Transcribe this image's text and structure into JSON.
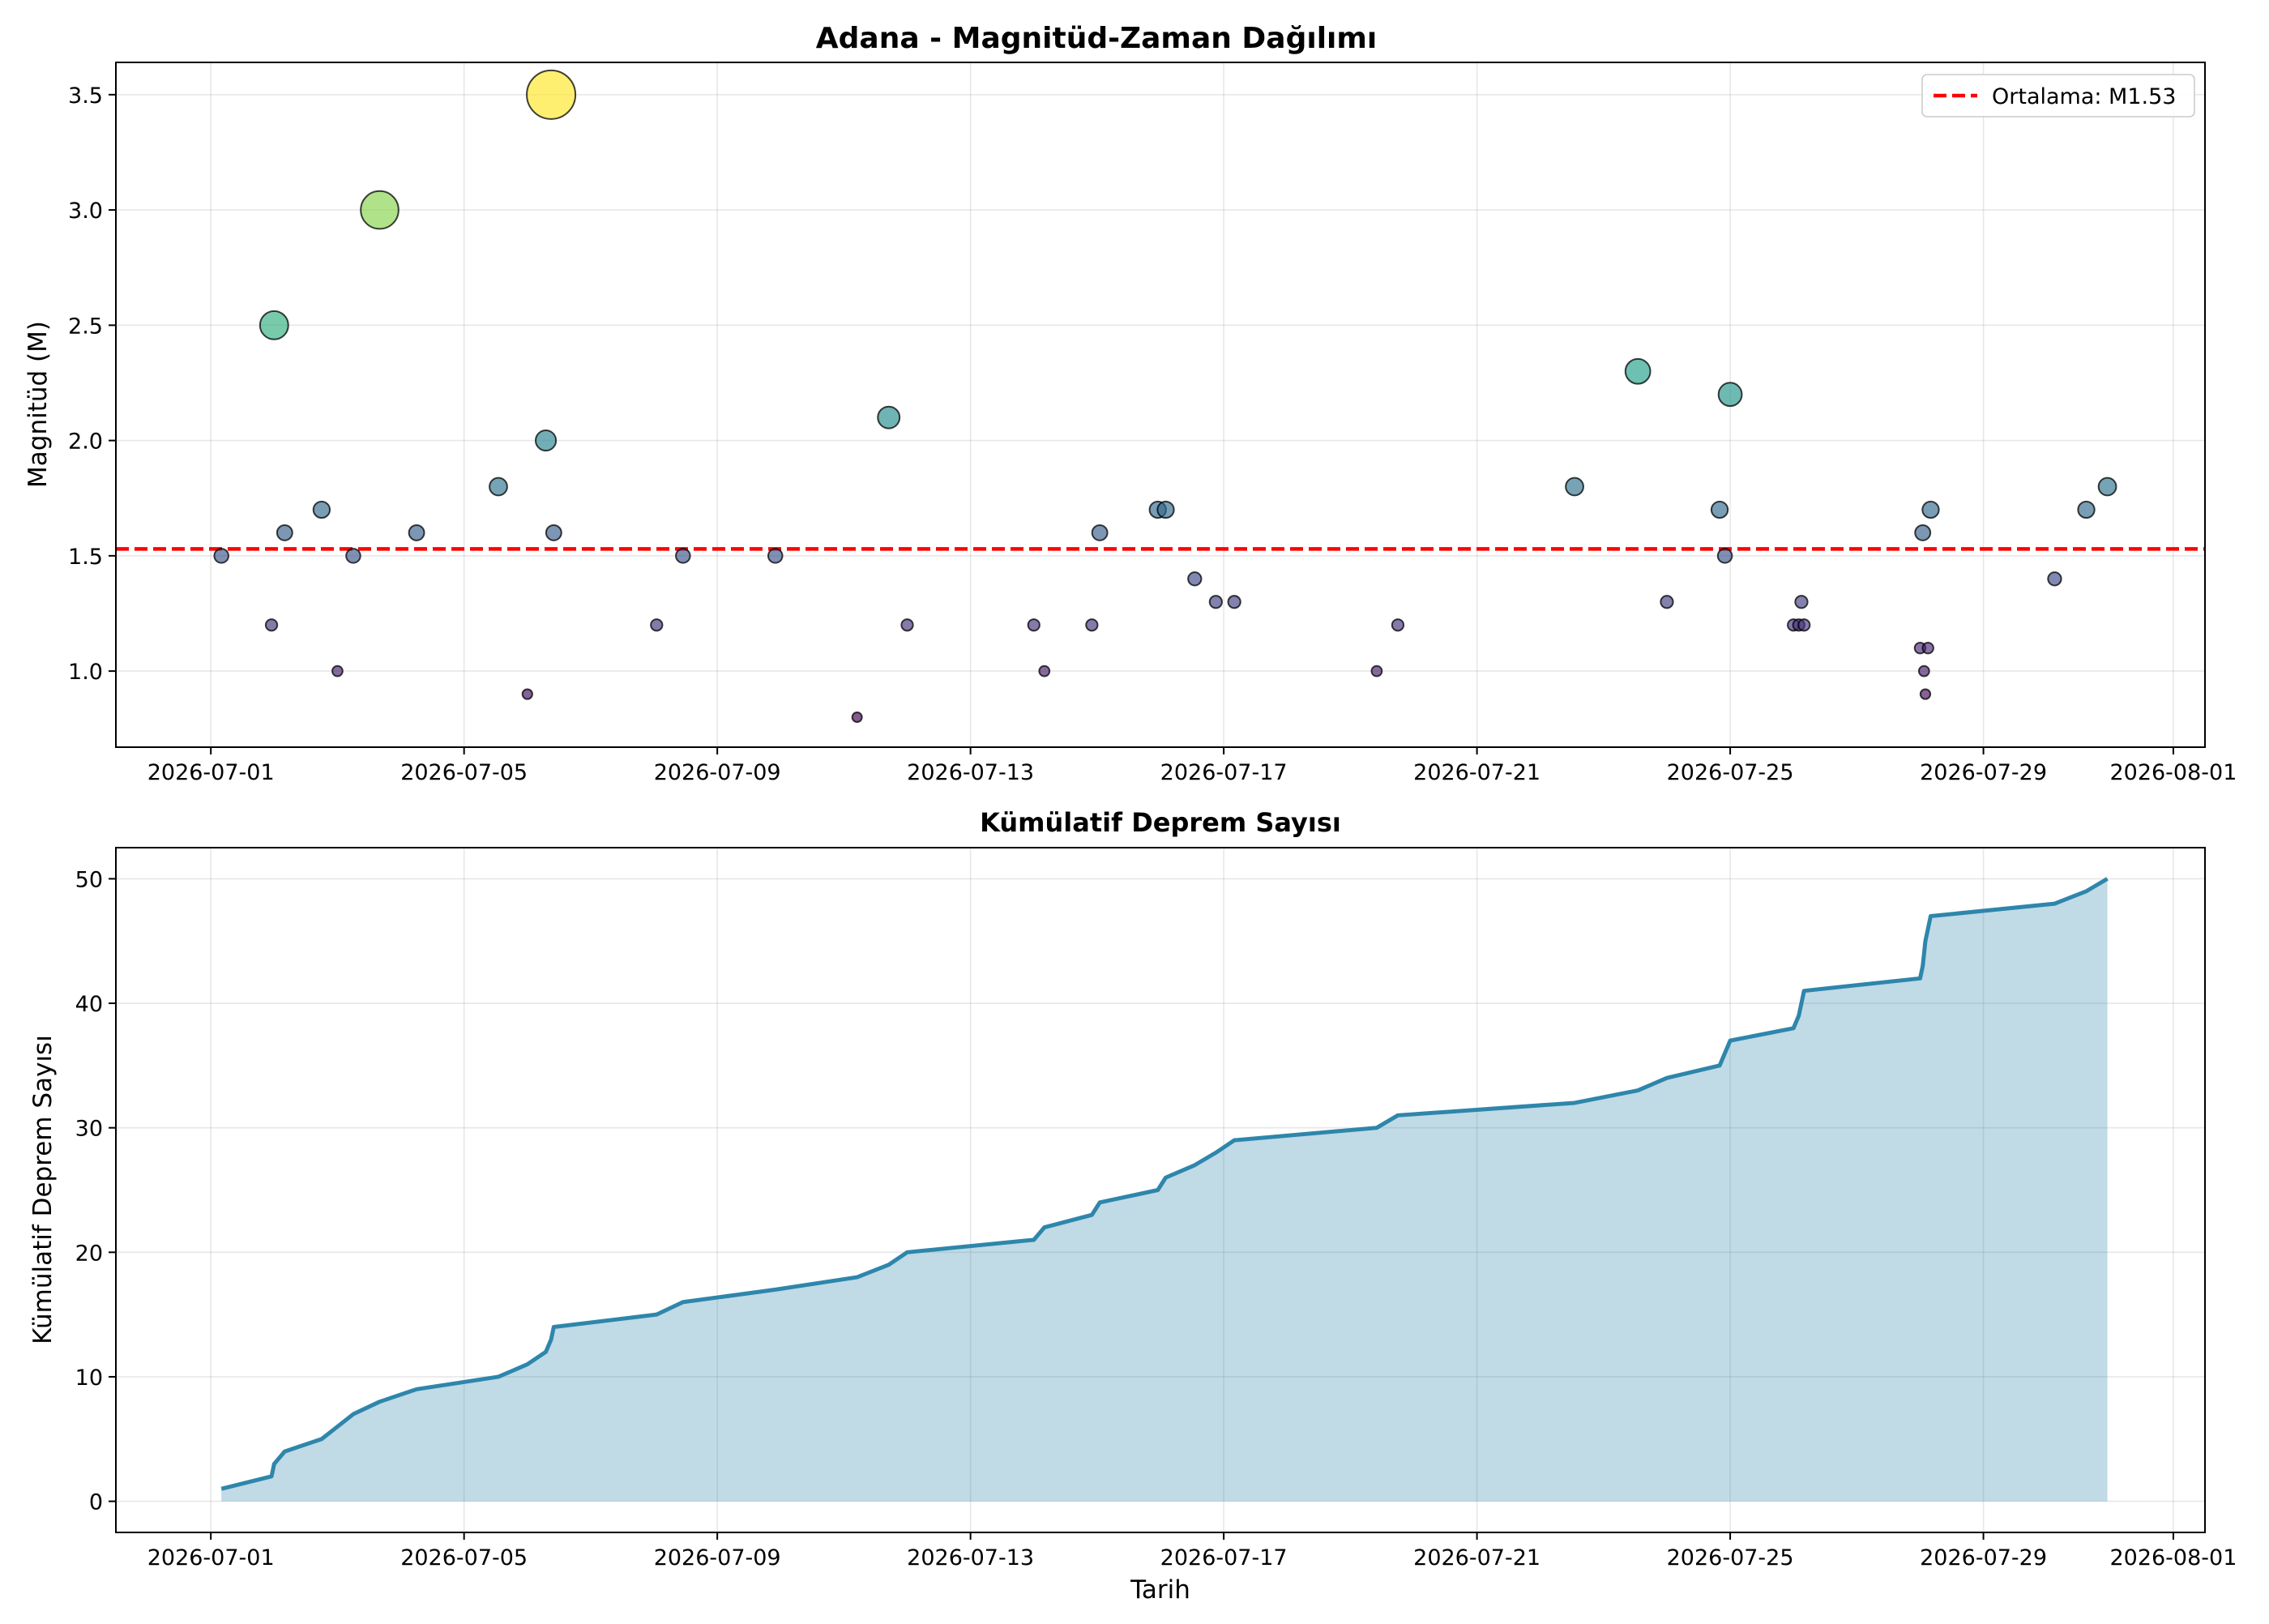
{
  "chart_data": [
    {
      "type": "scatter",
      "title": "Adana - Magnitüd-Zaman Dağılımı",
      "xlabel": "",
      "ylabel": "Magnitüd (M)",
      "xlim": [
        "2026-06-29T12:00",
        "2026-08-01T12:00"
      ],
      "ylim": [
        0.67,
        3.64
      ],
      "x_ticks": [
        "2026-07-01",
        "2026-07-05",
        "2026-07-09",
        "2026-07-13",
        "2026-07-17",
        "2026-07-21",
        "2026-07-25",
        "2026-07-29",
        "2026-08-01"
      ],
      "y_ticks": [
        "1.0",
        "1.5",
        "2.0",
        "2.5",
        "3.0",
        "3.5"
      ],
      "grid": true,
      "legend": "top-right",
      "mean_line": {
        "value": 1.53,
        "label": "Ortalama: M1.53",
        "color": "#ff0000"
      },
      "colormap": "viridis",
      "point_size": "scaled by magnitude",
      "points": [
        {
          "x": "2026-07-01T04:00",
          "y": 1.5
        },
        {
          "x": "2026-07-01T23:00",
          "y": 1.2
        },
        {
          "x": "2026-07-02T00:00",
          "y": 2.5
        },
        {
          "x": "2026-07-02T04:00",
          "y": 1.6
        },
        {
          "x": "2026-07-02T18:00",
          "y": 1.7
        },
        {
          "x": "2026-07-03T00:00",
          "y": 1.0
        },
        {
          "x": "2026-07-03T06:00",
          "y": 1.5
        },
        {
          "x": "2026-07-03T16:00",
          "y": 3.0
        },
        {
          "x": "2026-07-04T06:00",
          "y": 1.6
        },
        {
          "x": "2026-07-05T13:00",
          "y": 1.8
        },
        {
          "x": "2026-07-06T00:00",
          "y": 0.9
        },
        {
          "x": "2026-07-06T07:00",
          "y": 2.0
        },
        {
          "x": "2026-07-06T09:00",
          "y": 3.5
        },
        {
          "x": "2026-07-06T10:00",
          "y": 1.6
        },
        {
          "x": "2026-07-08T01:00",
          "y": 1.2
        },
        {
          "x": "2026-07-08T11:00",
          "y": 1.5
        },
        {
          "x": "2026-07-09T22:00",
          "y": 1.5
        },
        {
          "x": "2026-07-11T05:00",
          "y": 0.8
        },
        {
          "x": "2026-07-11T17:00",
          "y": 2.1
        },
        {
          "x": "2026-07-12T00:00",
          "y": 1.2
        },
        {
          "x": "2026-07-14T00:00",
          "y": 1.2
        },
        {
          "x": "2026-07-14T04:00",
          "y": 1.0
        },
        {
          "x": "2026-07-14T22:00",
          "y": 1.2
        },
        {
          "x": "2026-07-15T01:00",
          "y": 1.6
        },
        {
          "x": "2026-07-15T23:00",
          "y": 1.7
        },
        {
          "x": "2026-07-16T02:00",
          "y": 1.7
        },
        {
          "x": "2026-07-16T13:00",
          "y": 1.4
        },
        {
          "x": "2026-07-16T21:00",
          "y": 1.3
        },
        {
          "x": "2026-07-17T04:00",
          "y": 1.3
        },
        {
          "x": "2026-07-19T10:00",
          "y": 1.0
        },
        {
          "x": "2026-07-19T18:00",
          "y": 1.2
        },
        {
          "x": "2026-07-22T13:00",
          "y": 1.8
        },
        {
          "x": "2026-07-23T13:00",
          "y": 2.3
        },
        {
          "x": "2026-07-24T00:00",
          "y": 1.3
        },
        {
          "x": "2026-07-24T20:00",
          "y": 1.7
        },
        {
          "x": "2026-07-24T22:00",
          "y": 1.5
        },
        {
          "x": "2026-07-25T00:00",
          "y": 2.2
        },
        {
          "x": "2026-07-26T00:00",
          "y": 1.2
        },
        {
          "x": "2026-07-26T02:00",
          "y": 1.2
        },
        {
          "x": "2026-07-26T03:00",
          "y": 1.3
        },
        {
          "x": "2026-07-26T04:00",
          "y": 1.2
        },
        {
          "x": "2026-07-28T00:00",
          "y": 1.1
        },
        {
          "x": "2026-07-28T01:00",
          "y": 1.6
        },
        {
          "x": "2026-07-28T01:30",
          "y": 1.0
        },
        {
          "x": "2026-07-28T02:00",
          "y": 0.9
        },
        {
          "x": "2026-07-28T03:00",
          "y": 1.1
        },
        {
          "x": "2026-07-28T04:00",
          "y": 1.7
        },
        {
          "x": "2026-07-30T03:00",
          "y": 1.4
        },
        {
          "x": "2026-07-30T15:00",
          "y": 1.7
        },
        {
          "x": "2026-07-30T23:00",
          "y": 1.8
        }
      ]
    },
    {
      "type": "area",
      "title": "Kümülatif Deprem Sayısı",
      "xlabel": "Tarih",
      "ylabel": "Kümülatif Deprem Sayısı",
      "xlim": [
        "2026-06-29T12:00",
        "2026-08-01T12:00"
      ],
      "ylim": [
        -2.5,
        52.5
      ],
      "x_ticks": [
        "2026-07-01",
        "2026-07-05",
        "2026-07-09",
        "2026-07-13",
        "2026-07-17",
        "2026-07-21",
        "2026-07-25",
        "2026-07-29",
        "2026-08-01"
      ],
      "y_ticks": [
        "0",
        "10",
        "20",
        "30",
        "40",
        "50"
      ],
      "grid": true,
      "line_color": "#2e86ab",
      "fill_color": "#2e86ab",
      "series_source": "cumulative count of events in the scatter above (1..50)"
    }
  ]
}
